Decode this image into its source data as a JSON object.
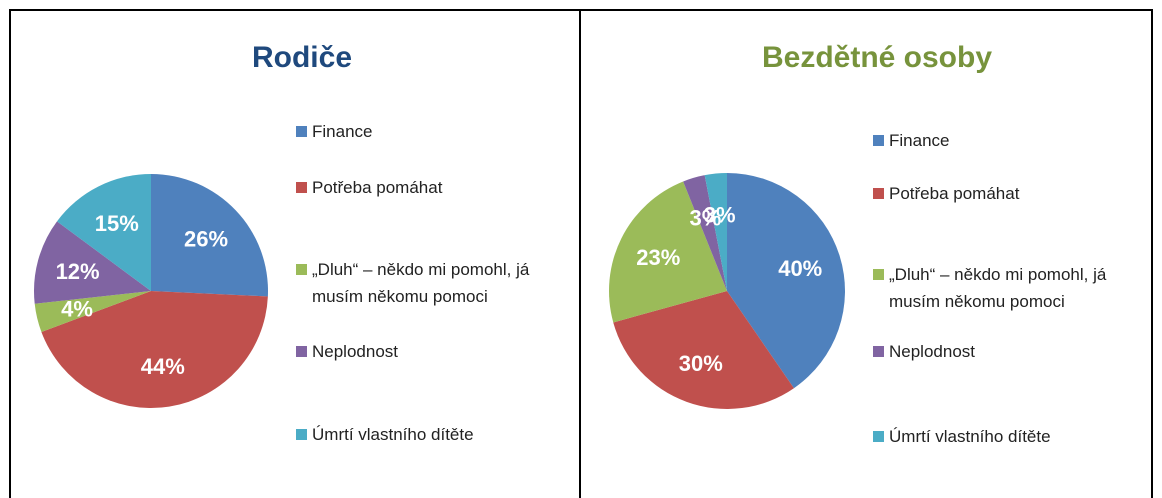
{
  "chart_data": [
    {
      "type": "pie",
      "title": "Rodiče",
      "title_color": "#1f497d",
      "categories": [
        "Finance",
        "Potřeba pomáhat",
        "„Dluh“ – někdo mi pomohl, já musím někomu pomoci",
        "Neplodnost",
        "Úmrtí vlastního dítěte"
      ],
      "values": [
        26,
        44,
        4,
        12,
        15
      ],
      "value_labels": [
        "26%",
        "44%",
        "4%",
        "12%",
        "15%"
      ],
      "colors": [
        "#4f81bd",
        "#c0504d",
        "#9bbb59",
        "#8064a2",
        "#4bacc6"
      ]
    },
    {
      "type": "pie",
      "title": "Bezdětné osoby",
      "title_color": "#77933c",
      "categories": [
        "Finance",
        "Potřeba pomáhat",
        "„Dluh“ – někdo mi pomohl, já musím někomu pomoci",
        "Neplodnost",
        "Úmrtí vlastního dítěte"
      ],
      "values": [
        40,
        30,
        23,
        3,
        3
      ],
      "value_labels": [
        "40%",
        "30%",
        "23%",
        "3%",
        "3%"
      ],
      "colors": [
        "#4f81bd",
        "#c0504d",
        "#9bbb59",
        "#8064a2",
        "#4bacc6"
      ]
    }
  ]
}
